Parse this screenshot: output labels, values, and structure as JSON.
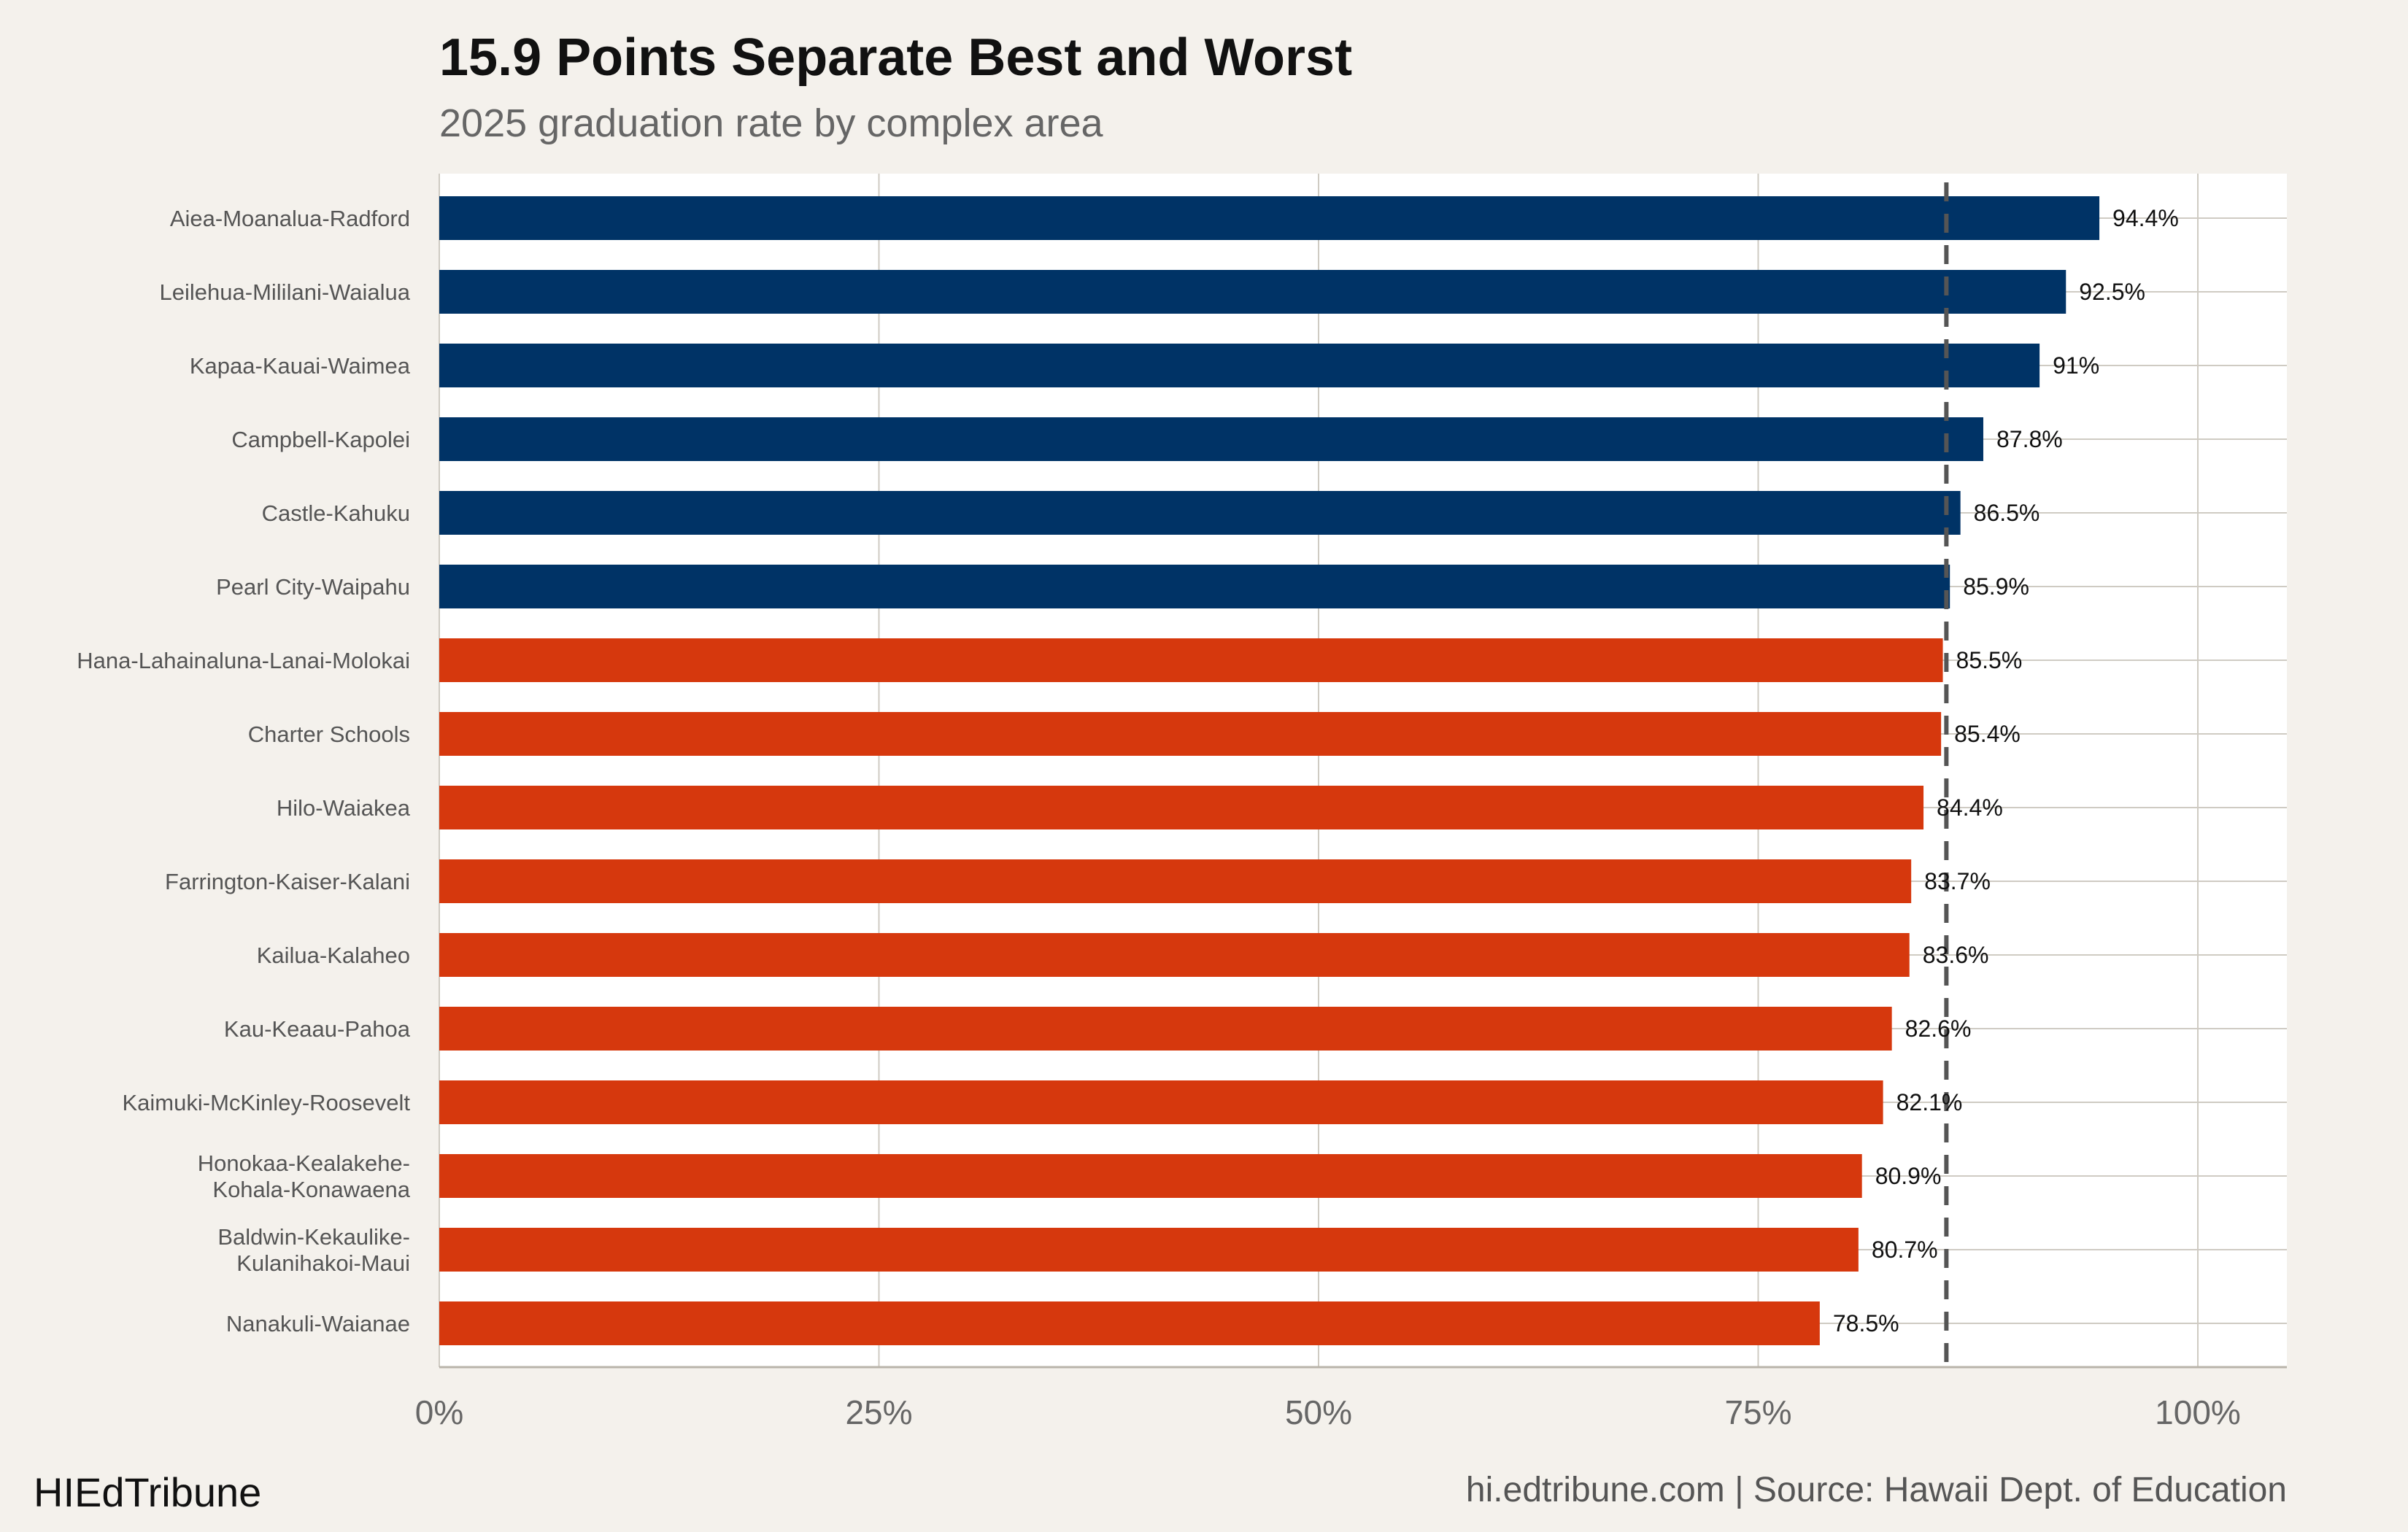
{
  "header": {
    "title": "15.9 Points Separate Best and Worst",
    "subtitle": "2025 graduation rate by complex area"
  },
  "footer": {
    "brand": "HIEdTribune",
    "source": "hi.edtribune.com | Source: Hawaii Dept. of Education"
  },
  "colors": {
    "top_group": "#003366",
    "bottom_group": "#d6380d",
    "reference_line": "#555555",
    "panel": "#ffffff",
    "background": "#f4f1ec"
  },
  "chart_data": {
    "type": "bar",
    "orientation": "horizontal",
    "title": "15.9 Points Separate Best and Worst",
    "subtitle": "2025 graduation rate by complex area",
    "xlabel": "",
    "ylabel": "",
    "xlim": [
      0,
      105
    ],
    "x_ticks": [
      0,
      25,
      50,
      75,
      100
    ],
    "x_tick_labels": [
      "0%",
      "25%",
      "50%",
      "75%",
      "100%"
    ],
    "grid": true,
    "reference_line": {
      "value": 85.7,
      "style": "dashed"
    },
    "categories": [
      [
        "Aiea-Moanalua-Radford"
      ],
      [
        "Leilehua-Mililani-Waialua"
      ],
      [
        "Kapaa-Kauai-Waimea"
      ],
      [
        "Campbell-Kapolei"
      ],
      [
        "Castle-Kahuku"
      ],
      [
        "Pearl City-Waipahu"
      ],
      [
        "Hana-Lahainaluna-Lanai-Molokai"
      ],
      [
        "Charter Schools"
      ],
      [
        "Hilo-Waiakea"
      ],
      [
        "Farrington-Kaiser-Kalani"
      ],
      [
        "Kailua-Kalaheo"
      ],
      [
        "Kau-Keaau-Pahoa"
      ],
      [
        "Kaimuki-McKinley-Roosevelt"
      ],
      [
        "Honokaa-Kealakehe-",
        "Kohala-Konawaena"
      ],
      [
        "Baldwin-Kekaulike-",
        "Kulanihakoi-Maui"
      ],
      [
        "Nanakuli-Waianae"
      ]
    ],
    "values": [
      94.4,
      92.5,
      91,
      87.8,
      86.5,
      85.9,
      85.5,
      85.4,
      84.4,
      83.7,
      83.6,
      82.6,
      82.1,
      80.9,
      80.7,
      78.5
    ],
    "value_labels": [
      "94.4%",
      "92.5%",
      "91%",
      "87.8%",
      "86.5%",
      "85.9%",
      "85.5%",
      "85.4%",
      "84.4%",
      "83.7%",
      "83.6%",
      "82.6%",
      "82.1%",
      "80.9%",
      "80.7%",
      "78.5%"
    ],
    "bar_group": [
      "top",
      "top",
      "top",
      "top",
      "top",
      "top",
      "bottom",
      "bottom",
      "bottom",
      "bottom",
      "bottom",
      "bottom",
      "bottom",
      "bottom",
      "bottom",
      "bottom"
    ]
  }
}
